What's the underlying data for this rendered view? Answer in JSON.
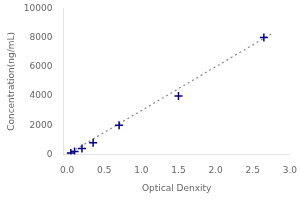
{
  "chart_data": {
    "type": "scatter",
    "xlabel": "Optical Denxity",
    "ylabel": "Concentration(ng/mL)",
    "xlim": [
      -0.05,
      3.0
    ],
    "xticks": [
      {
        "value": 0,
        "label": "0.0"
      },
      {
        "value": 0.5,
        "label": "0.5"
      },
      {
        "value": 1,
        "label": "1.0"
      },
      {
        "value": 1.5,
        "label": "1.5"
      },
      {
        "value": 2,
        "label": "2.0"
      },
      {
        "value": 2.5,
        "label": "2.5"
      },
      {
        "value": 3,
        "label": "3.0"
      }
    ],
    "ylim": [
      0,
      10000
    ],
    "yticks": [
      0,
      2000,
      4000,
      6000,
      8000,
      10000
    ],
    "grid": false,
    "series": [
      {
        "type": "line",
        "x": [
          0,
          2.75
        ],
        "values": [
          0,
          8250
        ],
        "color": "#888888",
        "line_style": "dotted"
      },
      {
        "type": "scatter",
        "x": [
          0.05,
          0.1,
          0.2,
          0.35,
          0.7,
          1.5,
          2.65
        ],
        "values": [
          100,
          200,
          400,
          800,
          2000,
          4000,
          8000
        ],
        "color": "#00008B",
        "marker": "plus"
      }
    ]
  }
}
